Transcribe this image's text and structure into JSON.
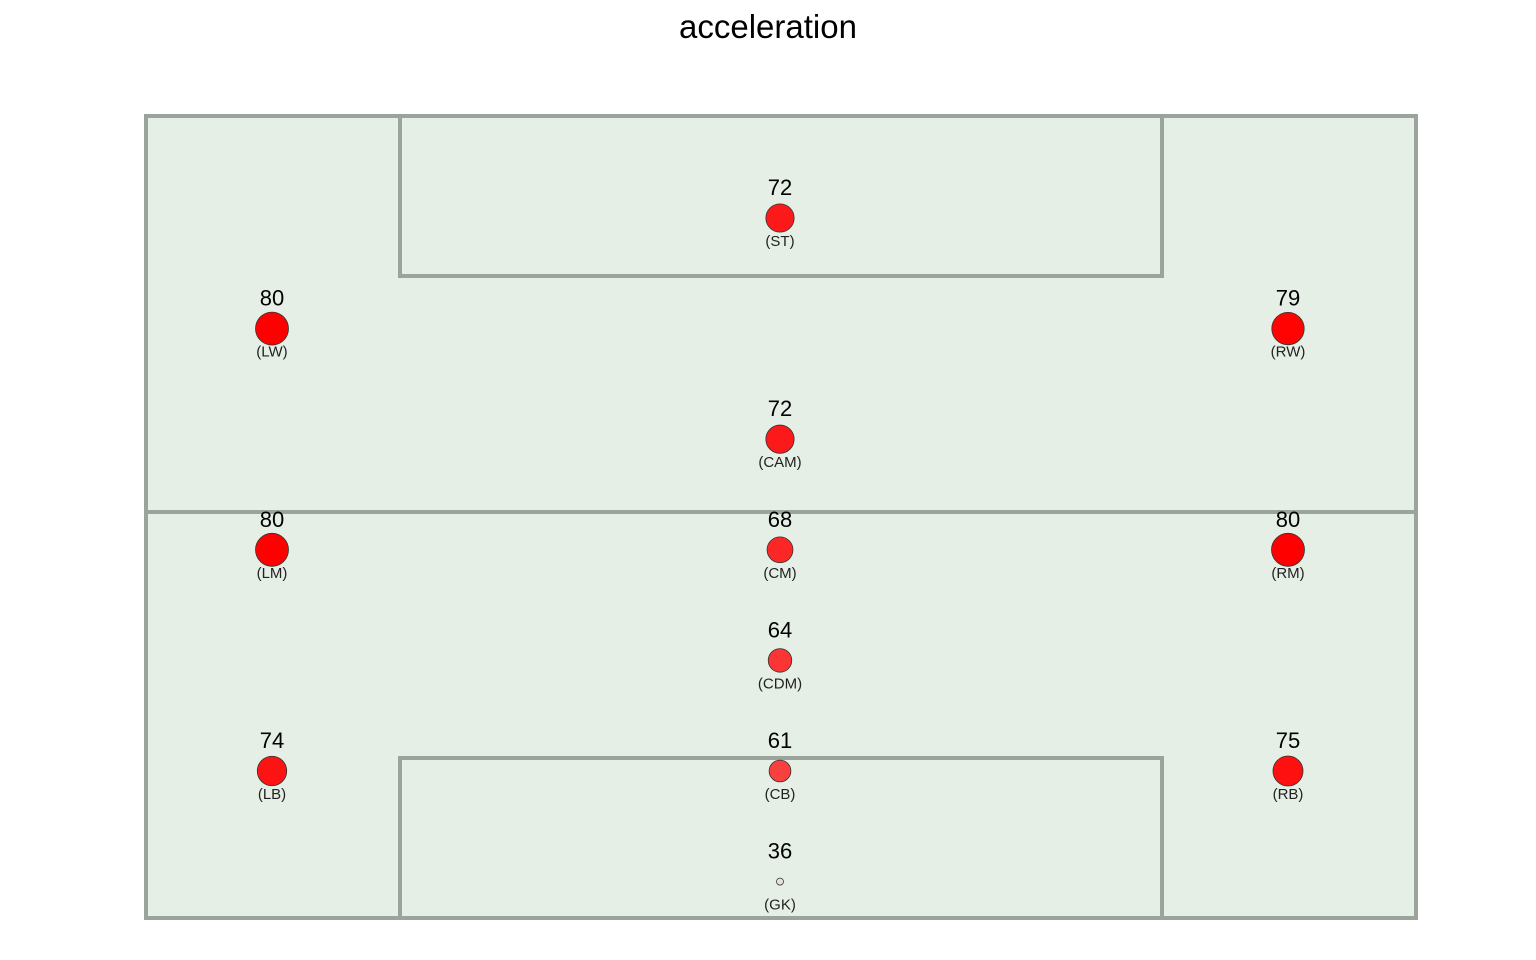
{
  "chart_data": {
    "type": "scatter",
    "title": "acceleration",
    "xlabel": "",
    "ylabel": "",
    "grid": false,
    "legend": "none",
    "colors": {
      "pitch_fill": "#e5efe6",
      "pitch_line": "#9aa39c",
      "high": "#ff0000",
      "low": "#e8e0dc"
    },
    "value_range": [
      36,
      80
    ],
    "points": [
      {
        "position": "(ST)",
        "value": 72,
        "x": 2,
        "y": 7
      },
      {
        "position": "(LW)",
        "value": 80,
        "x": 0,
        "y": 6
      },
      {
        "position": "(RW)",
        "value": 79,
        "x": 4,
        "y": 6
      },
      {
        "position": "(CAM)",
        "value": 72,
        "x": 2,
        "y": 5
      },
      {
        "position": "(LM)",
        "value": 80,
        "x": 0,
        "y": 4
      },
      {
        "position": "(CM)",
        "value": 68,
        "x": 2,
        "y": 4
      },
      {
        "position": "(RM)",
        "value": 80,
        "x": 4,
        "y": 4
      },
      {
        "position": "(CDM)",
        "value": 64,
        "x": 2,
        "y": 3
      },
      {
        "position": "(LB)",
        "value": 74,
        "x": 0,
        "y": 2
      },
      {
        "position": "(CB)",
        "value": 61,
        "x": 2,
        "y": 2
      },
      {
        "position": "(RB)",
        "value": 75,
        "x": 4,
        "y": 2
      },
      {
        "position": "(GK)",
        "value": 36,
        "x": 2,
        "y": 1
      }
    ]
  }
}
